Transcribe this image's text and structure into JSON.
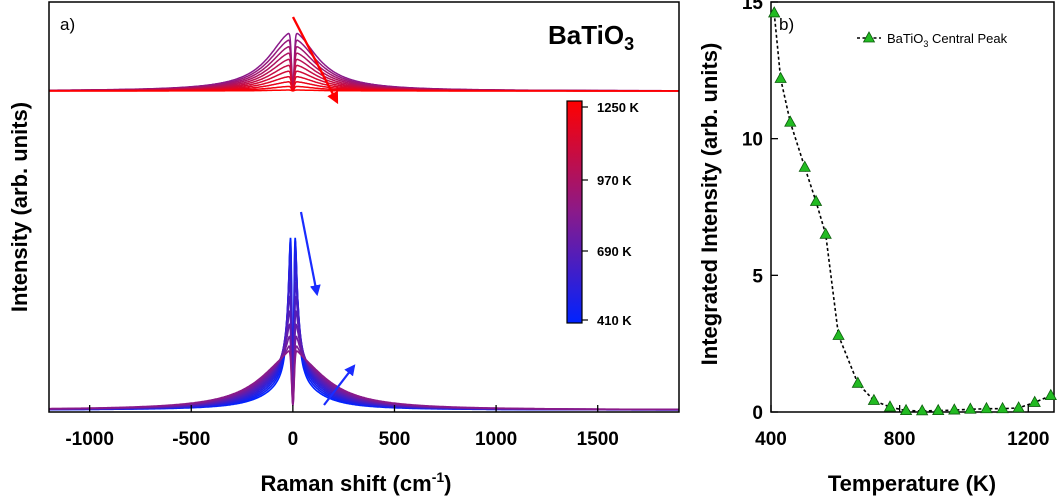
{
  "chart_data": [
    {
      "type": "line",
      "panel_label": "a)",
      "material": "BaTiO",
      "material_sub": "3",
      "xlabel": "Raman shift (cm",
      "xlabel_sup": "-1",
      "xlabel_end": ")",
      "ylabel": "Intensity (arb. units)",
      "xlim": [
        -1200,
        1900
      ],
      "xticks": [
        -1000,
        -500,
        0,
        500,
        1000,
        1500
      ],
      "yticks_shown": false,
      "colorbar": {
        "labels": [
          "1250 K",
          "970 K",
          "690 K",
          "410 K"
        ],
        "low_color": "#0022ff",
        "mid_color": "#8a1a8a",
        "high_color": "#ff0000"
      },
      "arrow_colors": {
        "high_T": "#ff0000",
        "low_T": "#1a2cff"
      }
    },
    {
      "type": "scatter",
      "panel_label": "b)",
      "xlabel": "Temperature (K)",
      "ylabel": "Integrated Intensity (arb. units)",
      "xlim": [
        400,
        1280
      ],
      "ylim": [
        0,
        15
      ],
      "xticks": [
        400,
        800,
        1200
      ],
      "yticks": [
        0,
        5,
        10,
        15
      ],
      "legend_prefix": "BaTiO",
      "legend_sub": "3",
      "legend_suffix": " Central Peak",
      "marker_color": "#22bb22",
      "series": [
        {
          "name": "BaTiO3 Central Peak",
          "x": [
            410,
            430,
            460,
            505,
            540,
            570,
            610,
            670,
            720,
            770,
            820,
            870,
            920,
            970,
            1020,
            1070,
            1120,
            1170,
            1220,
            1270
          ],
          "y": [
            14.6,
            12.2,
            10.6,
            8.95,
            7.7,
            6.5,
            2.8,
            1.05,
            0.42,
            0.18,
            0.05,
            0.04,
            0.05,
            0.07,
            0.1,
            0.12,
            0.12,
            0.15,
            0.35,
            0.6
          ]
        }
      ]
    }
  ]
}
